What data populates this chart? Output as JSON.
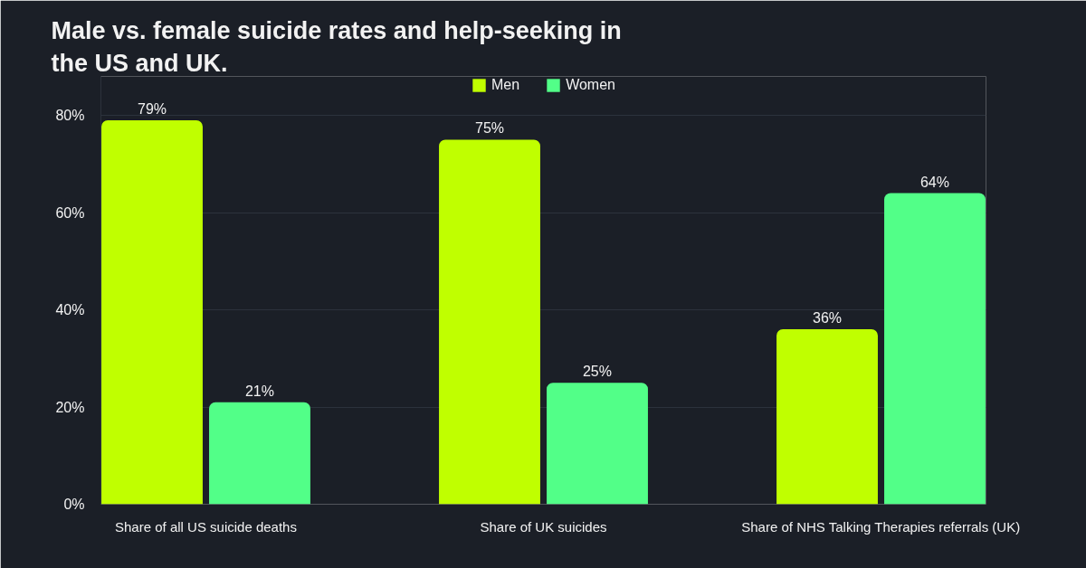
{
  "chart_data": {
    "type": "bar",
    "title": "Male vs. female suicide rates and help-seeking in the US and UK.",
    "categories": [
      "Share of all US suicide deaths",
      "Share of UK suicides",
      "Share of NHS Talking Therapies referrals (UK)"
    ],
    "series": [
      {
        "name": "Men",
        "color": "#c0ff00",
        "values": [
          79,
          75,
          36
        ],
        "value_labels": [
          "79%",
          "75%",
          "36%"
        ]
      },
      {
        "name": "Women",
        "color": "#52ff88",
        "values": [
          21,
          25,
          64
        ],
        "value_labels": [
          "21%",
          "25%",
          "64%"
        ]
      }
    ],
    "ylim": [
      0,
      88
    ],
    "yticks": [
      {
        "value": 0,
        "label": "0%"
      },
      {
        "value": 20,
        "label": "20%"
      },
      {
        "value": 40,
        "label": "40%"
      },
      {
        "value": 60,
        "label": "60%"
      },
      {
        "value": 80,
        "label": "80%"
      }
    ],
    "grid": "y",
    "legend": "top"
  }
}
